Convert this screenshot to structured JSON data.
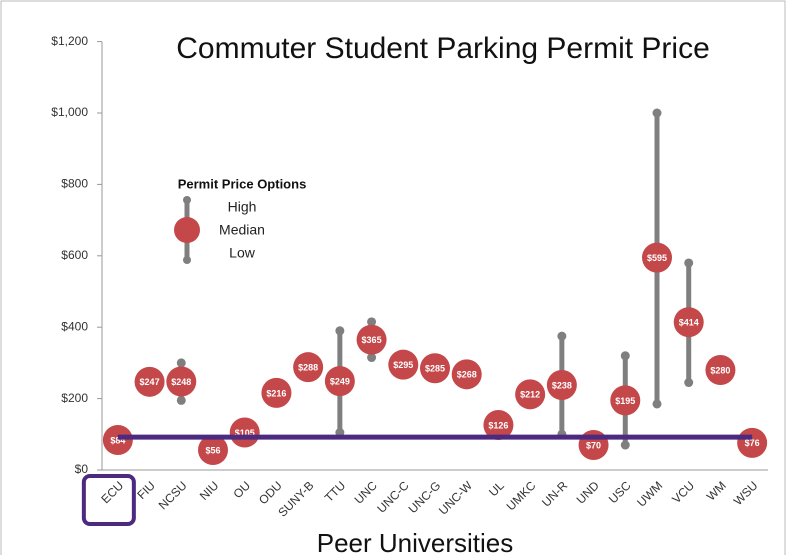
{
  "chart_data": {
    "type": "high-low-median",
    "title": "Commuter Student Parking Permit Price",
    "x_label": "Peer Universities",
    "legend_title": "Permit Price Options",
    "legend_labels": [
      "High",
      "Median",
      "Low"
    ],
    "categories": [
      "ECU",
      "FIU",
      "NCSU",
      "NIU",
      "OU",
      "ODU",
      "SUNY-B",
      "TTU",
      "UNC",
      "UNC-C",
      "UNC-G",
      "UNC-W",
      "UL",
      "UMKC",
      "UN-R",
      "UND",
      "USC",
      "UWM",
      "VCU",
      "WM",
      "WSU"
    ],
    "median": [
      84,
      247,
      248,
      56,
      105,
      216,
      288,
      249,
      365,
      295,
      285,
      268,
      126,
      212,
      238,
      70,
      195,
      595,
      414,
      280,
      76
    ],
    "value_labels": [
      "$84",
      "$247",
      "$248",
      "$56",
      "$105",
      "$216",
      "$288",
      "$249",
      "$365",
      "$295",
      "$285",
      "$268",
      "$126",
      "$212",
      "$238",
      "$70",
      "$195",
      "$595",
      "$414",
      "$280",
      "$76"
    ],
    "high": [
      null,
      null,
      300,
      null,
      null,
      null,
      null,
      390,
      415,
      null,
      null,
      null,
      null,
      null,
      375,
      null,
      320,
      1000,
      580,
      null,
      null
    ],
    "low": [
      null,
      null,
      195,
      null,
      null,
      null,
      null,
      105,
      315,
      null,
      null,
      null,
      null,
      null,
      100,
      null,
      70,
      185,
      245,
      null,
      null
    ],
    "median_color": "#c4484a",
    "range_color": "#7f7f7f",
    "reference_line": 92,
    "reference_color": "#4b2a80",
    "highlight_category": 0,
    "ylim": [
      0,
      1200
    ],
    "yticks": [
      {
        "value": 0,
        "label": "$0"
      },
      {
        "value": 200,
        "label": "$200"
      },
      {
        "value": 400,
        "label": "$400"
      },
      {
        "value": 600,
        "label": "$600"
      },
      {
        "value": 800,
        "label": "$800"
      },
      {
        "value": 1000,
        "label": "$1,000"
      },
      {
        "value": 1200,
        "label": "$1,200"
      }
    ]
  }
}
